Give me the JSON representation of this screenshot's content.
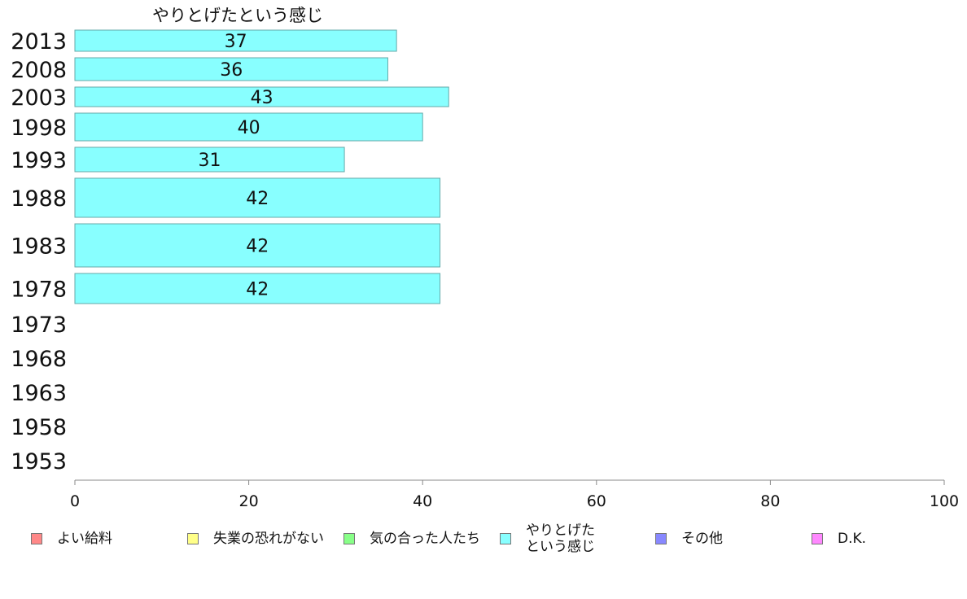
{
  "chart_data": {
    "type": "bar",
    "orientation": "horizontal",
    "title": "やりとげたという感じ",
    "categories": [
      "2013",
      "2008",
      "2003",
      "1998",
      "1993",
      "1988",
      "1983",
      "1978",
      "1973",
      "1968",
      "1963",
      "1958",
      "1953"
    ],
    "series": [
      {
        "name": "やりとげたという感じ",
        "color": "#88ffff",
        "values": [
          37,
          36,
          43,
          40,
          31,
          42,
          42,
          42,
          null,
          null,
          null,
          null,
          null
        ],
        "labels": [
          "37",
          "36",
          "43",
          "40",
          "31",
          "42",
          "42",
          "42",
          "",
          "",
          "",
          "",
          ""
        ]
      }
    ],
    "xlim": [
      0,
      100
    ],
    "xticks": [
      "0",
      "20",
      "40",
      "60",
      "80",
      "100"
    ],
    "grid": false,
    "legend_position": "bottom"
  },
  "legend": [
    {
      "label": "よい給料",
      "color": "#ff8888"
    },
    {
      "label": "失業の恐れがない",
      "color": "#ffff88"
    },
    {
      "label": "気の合った人たち",
      "color": "#88ff88"
    },
    {
      "label": "やりとげた\nという感じ",
      "color": "#88ffff"
    },
    {
      "label": "その他",
      "color": "#8888ff"
    },
    {
      "label": "D.K.",
      "color": "#ff88ff"
    }
  ]
}
